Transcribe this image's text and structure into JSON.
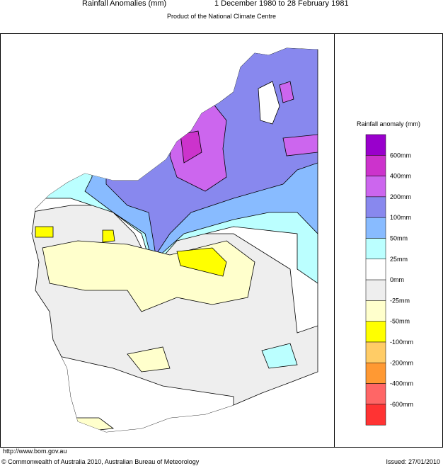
{
  "header": {
    "title": "Rainfall Anomalies (mm)",
    "period": "1 December 1980 to 28 February 1981",
    "subtitle": "Product of the National Climate Centre"
  },
  "legend": {
    "title": "Rainfall anomaly (mm)",
    "colors": [
      "#9900cc",
      "#cc33cc",
      "#cc66ee",
      "#8888ee",
      "#88bbff",
      "#bbffff",
      "#ffffff",
      "#eeeeee",
      "#ffffcc",
      "#ffff00",
      "#ffcc66",
      "#ff9933",
      "#ff6666",
      "#ff3333"
    ],
    "labels": [
      "600mm",
      "400mm",
      "200mm",
      "100mm",
      "50mm",
      "25mm",
      "0mm",
      "-25mm",
      "-50mm",
      "-100mm",
      "-200mm",
      "-400mm",
      "-600mm"
    ]
  },
  "footer": {
    "url": "http://www.bom.gov.au",
    "copyright": "© Commonwealth of Australia 2010, Australian Bureau of Meteorology",
    "issued": "Issued: 27/01/2010"
  }
}
